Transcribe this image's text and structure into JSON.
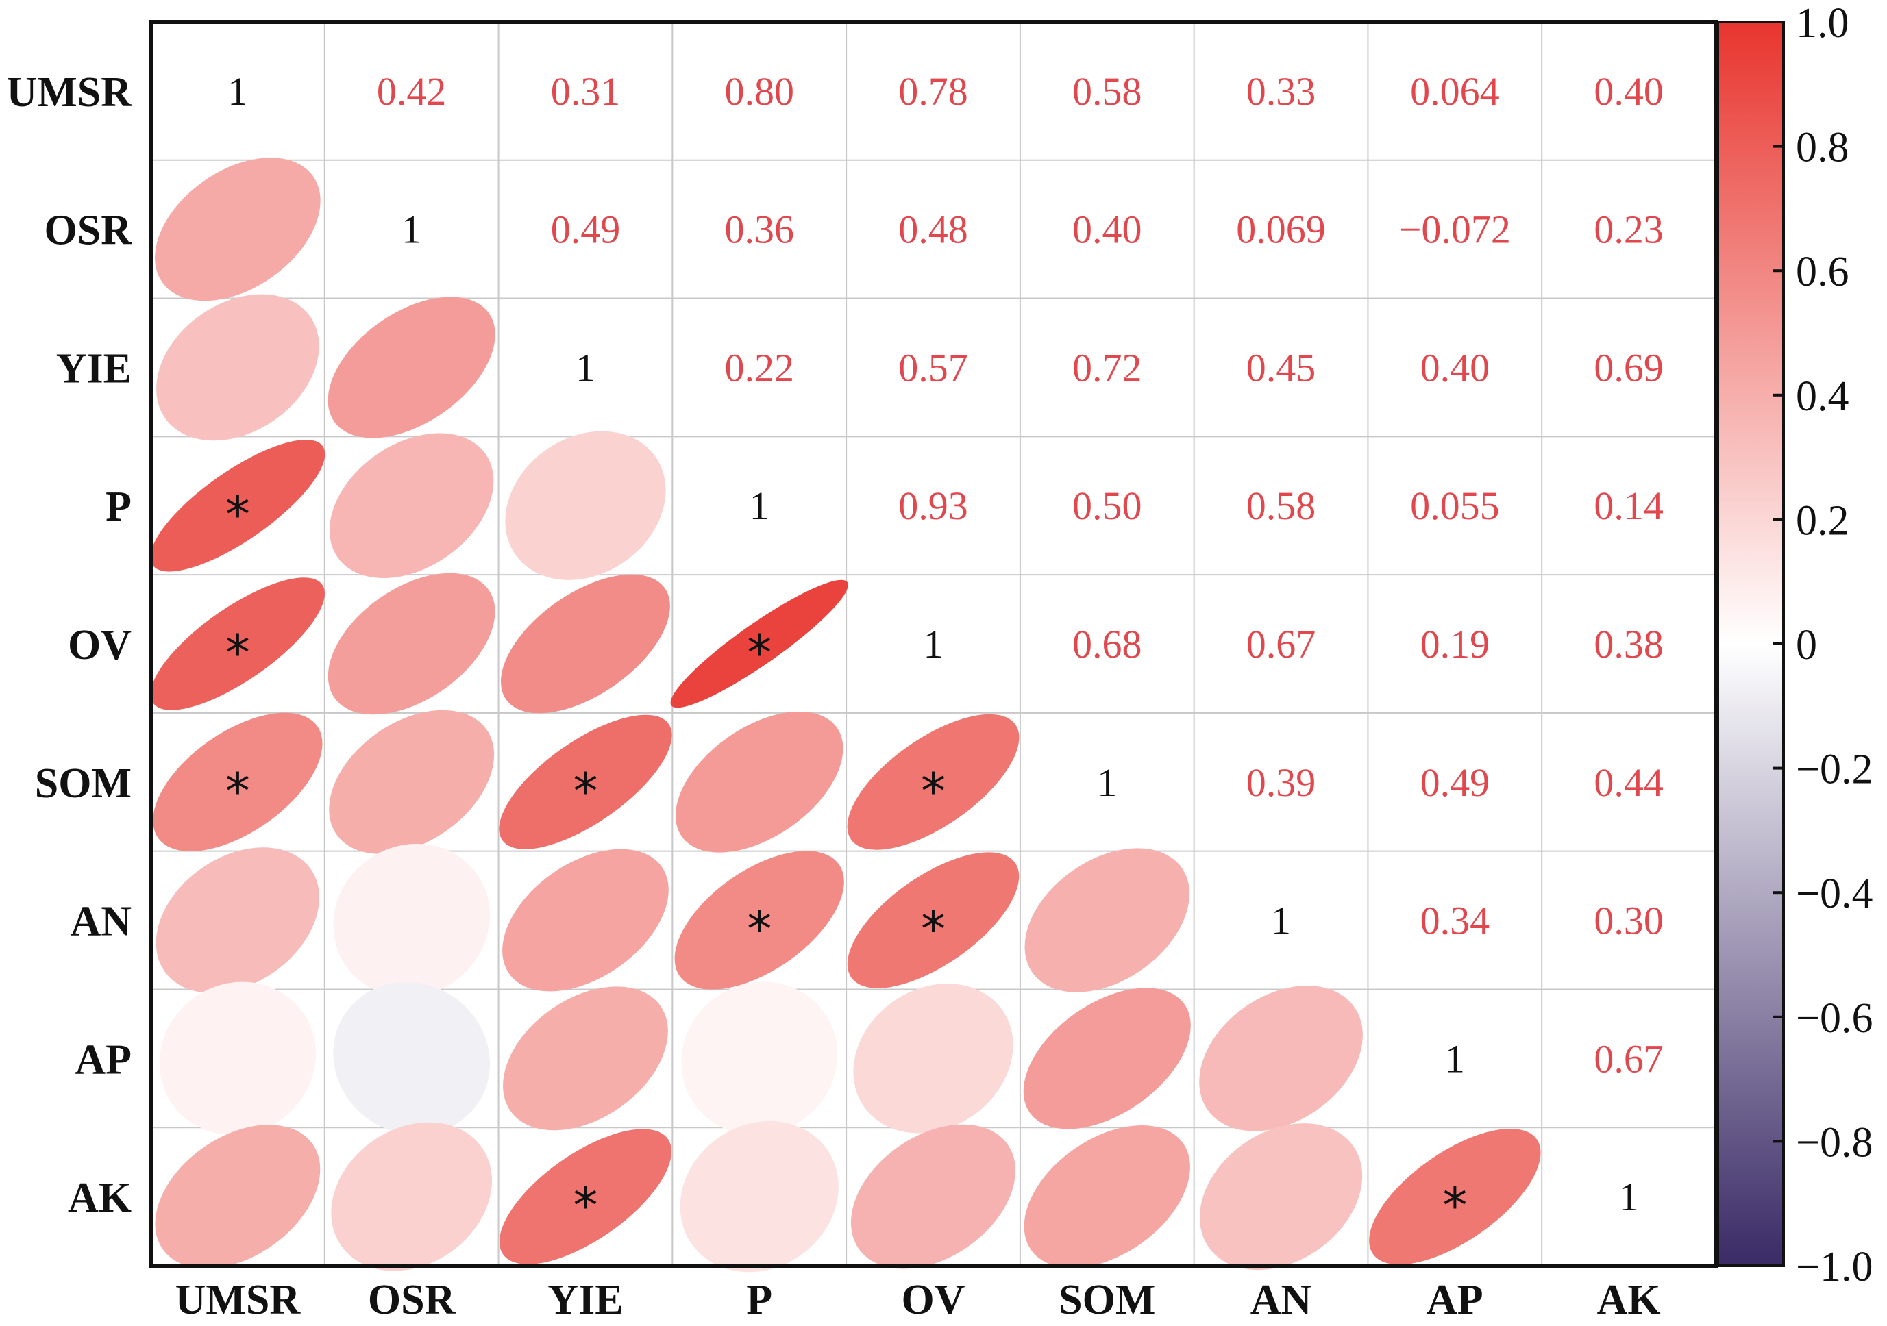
{
  "chart_data": {
    "type": "heatmap",
    "variables": [
      "UMSR",
      "OSR",
      "YIE",
      "P",
      "OV",
      "SOM",
      "AN",
      "AP",
      "AK"
    ],
    "matrix": [
      [
        1,
        0.42,
        0.31,
        0.8,
        0.78,
        0.58,
        0.33,
        0.064,
        0.4
      ],
      [
        0.42,
        1,
        0.49,
        0.36,
        0.48,
        0.4,
        0.069,
        -0.072,
        0.23
      ],
      [
        0.31,
        0.49,
        1,
        0.22,
        0.57,
        0.72,
        0.45,
        0.4,
        0.69
      ],
      [
        0.8,
        0.36,
        0.22,
        1,
        0.93,
        0.5,
        0.58,
        0.055,
        0.14
      ],
      [
        0.78,
        0.48,
        0.57,
        0.93,
        1,
        0.68,
        0.67,
        0.19,
        0.38
      ],
      [
        0.58,
        0.4,
        0.72,
        0.5,
        0.68,
        1,
        0.39,
        0.49,
        0.44
      ],
      [
        0.33,
        0.069,
        0.45,
        0.58,
        0.67,
        0.39,
        1,
        0.34,
        0.3
      ],
      [
        0.064,
        -0.072,
        0.4,
        0.055,
        0.19,
        0.49,
        0.34,
        1,
        0.67
      ],
      [
        0.4,
        0.23,
        0.69,
        0.14,
        0.38,
        0.44,
        0.3,
        0.67,
        1
      ]
    ],
    "upper_labels": [
      [
        "1",
        "0.42",
        "0.31",
        "0.80",
        "0.78",
        "0.58",
        "0.33",
        "0.064",
        "0.40"
      ],
      [
        "0.42",
        "1",
        "0.49",
        "0.36",
        "0.48",
        "0.40",
        "0.069",
        "−0.072",
        "0.23"
      ],
      [
        "0.31",
        "0.49",
        "1",
        "0.22",
        "0.57",
        "0.72",
        "0.45",
        "0.40",
        "0.69"
      ],
      [
        "0.80",
        "0.36",
        "0.22",
        "1",
        "0.93",
        "0.50",
        "0.58",
        "0.055",
        "0.14"
      ],
      [
        "0.78",
        "0.48",
        "0.57",
        "0.93",
        "1",
        "0.68",
        "0.67",
        "0.19",
        "0.38"
      ],
      [
        "0.58",
        "0.40",
        "0.72",
        "0.50",
        "0.68",
        "1",
        "0.39",
        "0.49",
        "0.44"
      ],
      [
        "0.33",
        "0.069",
        "0.45",
        "0.58",
        "0.67",
        "0.39",
        "1",
        "0.34",
        "0.30"
      ],
      [
        "0.064",
        "−0.072",
        "0.40",
        "0.055",
        "0.19",
        "0.49",
        "0.34",
        "1",
        "0.67"
      ],
      [
        "0.40",
        "0.23",
        "0.69",
        "0.14",
        "0.38",
        "0.44",
        "0.30",
        "0.67",
        "1"
      ]
    ],
    "significant": [
      [
        3,
        0
      ],
      [
        4,
        0
      ],
      [
        4,
        3
      ],
      [
        5,
        0
      ],
      [
        5,
        2
      ],
      [
        5,
        4
      ],
      [
        6,
        3
      ],
      [
        6,
        4
      ],
      [
        8,
        2
      ],
      [
        8,
        7
      ]
    ],
    "significance_marker": "*",
    "lower_triangle_shape": "ellipse",
    "colorbar": {
      "range": [
        -1.0,
        1.0
      ],
      "ticks": [
        "1.0",
        "0.8",
        "0.6",
        "0.4",
        "0.2",
        "0",
        "−0.2",
        "−0.4",
        "−0.6",
        "−0.8",
        "−1.0"
      ],
      "colors": {
        "positive": "#e8352e",
        "zero": "#ffffff",
        "negative": "#3a2a66"
      }
    },
    "text_colors": {
      "coefficient": "#e0484e",
      "diagonal": "#111111"
    },
    "grid": true
  }
}
